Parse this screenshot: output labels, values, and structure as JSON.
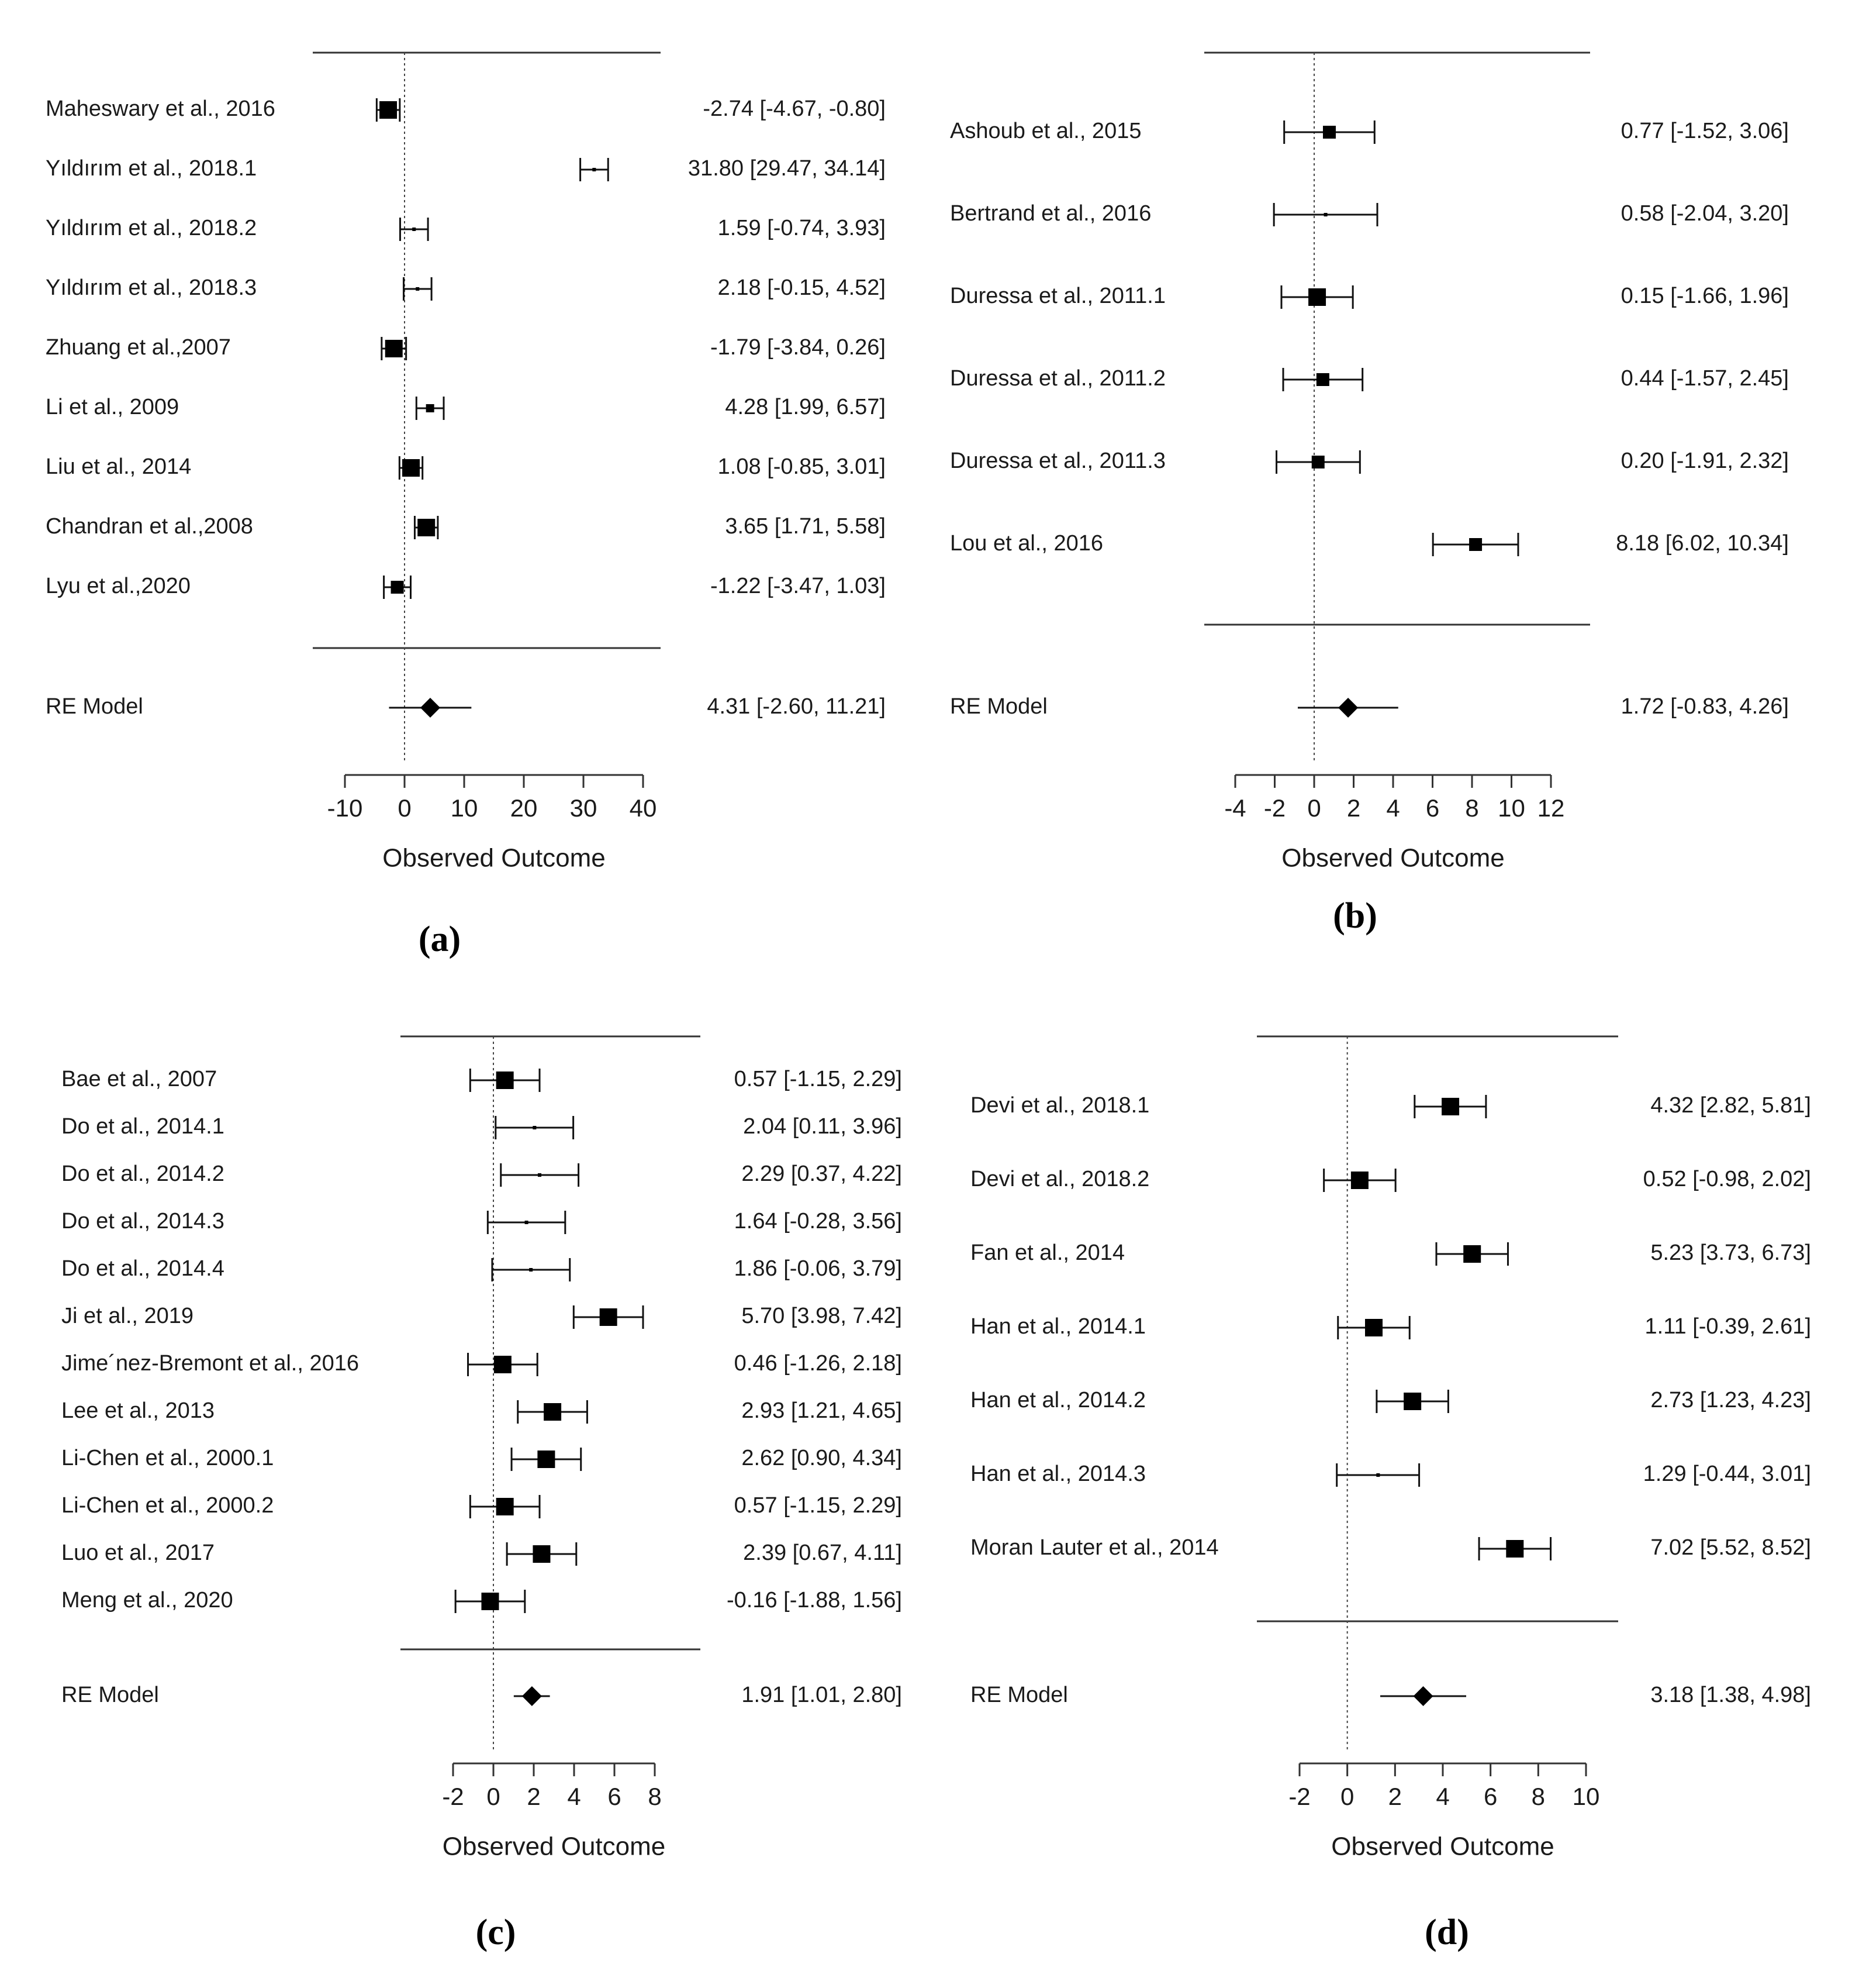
{
  "chart_data": [
    {
      "type": "forest",
      "panel_label": "(a)",
      "xlabel": "Observed Outcome",
      "xticks": [
        -10,
        0,
        10,
        20,
        30,
        40
      ],
      "xlim": [
        -10,
        40
      ],
      "reference_line": 0,
      "studies": [
        {
          "label": "Maheswary et al., 2016",
          "est": -2.74,
          "lo": -4.67,
          "hi": -0.8,
          "text": "-2.74 [-4.67, -0.80]",
          "weight": "large"
        },
        {
          "label": "Yıldırım et al., 2018.1",
          "est": 31.8,
          "lo": 29.47,
          "hi": 34.14,
          "text": "31.80 [29.47, 34.14]",
          "weight": "tiny"
        },
        {
          "label": "Yıldırım et al., 2018.2",
          "est": 1.59,
          "lo": -0.74,
          "hi": 3.93,
          "text": "1.59 [-0.74, 3.93]",
          "weight": "tiny"
        },
        {
          "label": "Yıldırım et al., 2018.3",
          "est": 2.18,
          "lo": -0.15,
          "hi": 4.52,
          "text": "2.18 [-0.15, 4.52]",
          "weight": "tiny"
        },
        {
          "label": "Zhuang et al.,2007",
          "est": -1.79,
          "lo": -3.84,
          "hi": 0.26,
          "text": "-1.79 [-3.84, 0.26]",
          "weight": "large"
        },
        {
          "label": "Li et al., 2009",
          "est": 4.28,
          "lo": 1.99,
          "hi": 6.57,
          "text": "4.28 [1.99, 6.57]",
          "weight": "small"
        },
        {
          "label": "Liu et al., 2014",
          "est": 1.08,
          "lo": -0.85,
          "hi": 3.01,
          "text": "1.08 [-0.85, 3.01]",
          "weight": "large"
        },
        {
          "label": "Chandran et al.,2008",
          "est": 3.65,
          "lo": 1.71,
          "hi": 5.58,
          "text": "3.65 [1.71, 5.58]",
          "weight": "large"
        },
        {
          "label": "Lyu et al.,2020",
          "est": -1.22,
          "lo": -3.47,
          "hi": 1.03,
          "text": "-1.22 [-3.47, 1.03]",
          "weight": "medium"
        }
      ],
      "summary": {
        "label": "RE Model",
        "est": 4.31,
        "lo": -2.6,
        "hi": 11.21,
        "text": "4.31 [-2.60, 11.21]"
      }
    },
    {
      "type": "forest",
      "panel_label": "(b)",
      "xlabel": "Observed Outcome",
      "xticks": [
        -4,
        -2,
        0,
        2,
        4,
        6,
        8,
        10,
        12
      ],
      "xlim": [
        -4,
        12
      ],
      "reference_line": 0,
      "studies": [
        {
          "label": "Ashoub et al., 2015",
          "est": 0.77,
          "lo": -1.52,
          "hi": 3.06,
          "text": "0.77 [-1.52, 3.06]",
          "weight": "medium"
        },
        {
          "label": "Bertrand et al., 2016",
          "est": 0.58,
          "lo": -2.04,
          "hi": 3.2,
          "text": "0.58 [-2.04, 3.20]",
          "weight": "tiny"
        },
        {
          "label": "Duressa et al., 2011.1",
          "est": 0.15,
          "lo": -1.66,
          "hi": 1.96,
          "text": "0.15 [-1.66, 1.96]",
          "weight": "large"
        },
        {
          "label": "Duressa et al., 2011.2",
          "est": 0.44,
          "lo": -1.57,
          "hi": 2.45,
          "text": "0.44 [-1.57, 2.45]",
          "weight": "medium"
        },
        {
          "label": "Duressa et al., 2011.3",
          "est": 0.2,
          "lo": -1.91,
          "hi": 2.32,
          "text": "0.20 [-1.91, 2.32]",
          "weight": "medium"
        },
        {
          "label": "Lou et al., 2016",
          "est": 8.18,
          "lo": 6.02,
          "hi": 10.34,
          "text": "8.18 [6.02, 10.34]",
          "weight": "medium"
        }
      ],
      "summary": {
        "label": "RE Model",
        "est": 1.72,
        "lo": -0.83,
        "hi": 4.26,
        "text": "1.72 [-0.83, 4.26]"
      }
    },
    {
      "type": "forest",
      "panel_label": "(c)",
      "xlabel": "Observed Outcome",
      "xticks": [
        -2,
        0,
        2,
        4,
        6,
        8
      ],
      "xlim": [
        -2,
        8
      ],
      "reference_line": 0,
      "studies": [
        {
          "label": "Bae et al., 2007",
          "est": 0.57,
          "lo": -1.15,
          "hi": 2.29,
          "text": "0.57 [-1.15, 2.29]",
          "weight": "large"
        },
        {
          "label": "Do et al., 2014.1",
          "est": 2.04,
          "lo": 0.11,
          "hi": 3.96,
          "text": "2.04 [0.11, 3.96]",
          "weight": "tiny"
        },
        {
          "label": "Do et al., 2014.2",
          "est": 2.29,
          "lo": 0.37,
          "hi": 4.22,
          "text": "2.29 [0.37, 4.22]",
          "weight": "tiny"
        },
        {
          "label": "Do et al., 2014.3",
          "est": 1.64,
          "lo": -0.28,
          "hi": 3.56,
          "text": "1.64 [-0.28, 3.56]",
          "weight": "tiny"
        },
        {
          "label": "Do et al., 2014.4",
          "est": 1.86,
          "lo": -0.06,
          "hi": 3.79,
          "text": "1.86 [-0.06, 3.79]",
          "weight": "tiny"
        },
        {
          "label": "Ji et al., 2019",
          "est": 5.7,
          "lo": 3.98,
          "hi": 7.42,
          "text": "5.70 [3.98, 7.42]",
          "weight": "large"
        },
        {
          "label": "Jime´nez-Bremont et al., 2016",
          "est": 0.46,
          "lo": -1.26,
          "hi": 2.18,
          "text": "0.46 [-1.26, 2.18]",
          "weight": "large"
        },
        {
          "label": "Lee et al., 2013",
          "est": 2.93,
          "lo": 1.21,
          "hi": 4.65,
          "text": "2.93 [1.21, 4.65]",
          "weight": "large"
        },
        {
          "label": "Li-Chen et al., 2000.1",
          "est": 2.62,
          "lo": 0.9,
          "hi": 4.34,
          "text": "2.62 [0.90, 4.34]",
          "weight": "large"
        },
        {
          "label": "Li-Chen et al., 2000.2",
          "est": 0.57,
          "lo": -1.15,
          "hi": 2.29,
          "text": "0.57 [-1.15, 2.29]",
          "weight": "large"
        },
        {
          "label": "Luo et al., 2017",
          "est": 2.39,
          "lo": 0.67,
          "hi": 4.11,
          "text": "2.39 [0.67, 4.11]",
          "weight": "large"
        },
        {
          "label": "Meng et al., 2020",
          "est": -0.16,
          "lo": -1.88,
          "hi": 1.56,
          "text": "-0.16 [-1.88, 1.56]",
          "weight": "large"
        }
      ],
      "summary": {
        "label": "RE Model",
        "est": 1.91,
        "lo": 1.01,
        "hi": 2.8,
        "text": "1.91 [1.01, 2.80]"
      }
    },
    {
      "type": "forest",
      "panel_label": "(d)",
      "xlabel": "Observed Outcome",
      "xticks": [
        -2,
        0,
        2,
        4,
        6,
        8,
        10
      ],
      "xlim": [
        -2,
        10
      ],
      "reference_line": 0,
      "studies": [
        {
          "label": "Devi et al., 2018.1",
          "est": 4.32,
          "lo": 2.82,
          "hi": 5.81,
          "text": "4.32 [2.82, 5.81]",
          "weight": "large"
        },
        {
          "label": "Devi et al., 2018.2",
          "est": 0.52,
          "lo": -0.98,
          "hi": 2.02,
          "text": "0.52 [-0.98, 2.02]",
          "weight": "large"
        },
        {
          "label": "Fan et al., 2014",
          "est": 5.23,
          "lo": 3.73,
          "hi": 6.73,
          "text": "5.23 [3.73, 6.73]",
          "weight": "large"
        },
        {
          "label": "Han et al., 2014.1",
          "est": 1.11,
          "lo": -0.39,
          "hi": 2.61,
          "text": "1.11 [-0.39, 2.61]",
          "weight": "large"
        },
        {
          "label": "Han et al., 2014.2",
          "est": 2.73,
          "lo": 1.23,
          "hi": 4.23,
          "text": "2.73 [1.23, 4.23]",
          "weight": "large"
        },
        {
          "label": "Han et al., 2014.3",
          "est": 1.29,
          "lo": -0.44,
          "hi": 3.01,
          "text": "1.29 [-0.44, 3.01]",
          "weight": "tiny"
        },
        {
          "label": "Moran Lauter et al., 2014",
          "est": 7.02,
          "lo": 5.52,
          "hi": 8.52,
          "text": "7.02 [5.52, 8.52]",
          "weight": "large"
        }
      ],
      "summary": {
        "label": "RE Model",
        "est": 3.18,
        "lo": 1.38,
        "hi": 4.98,
        "text": "3.18 [1.38, 4.98]"
      }
    }
  ]
}
